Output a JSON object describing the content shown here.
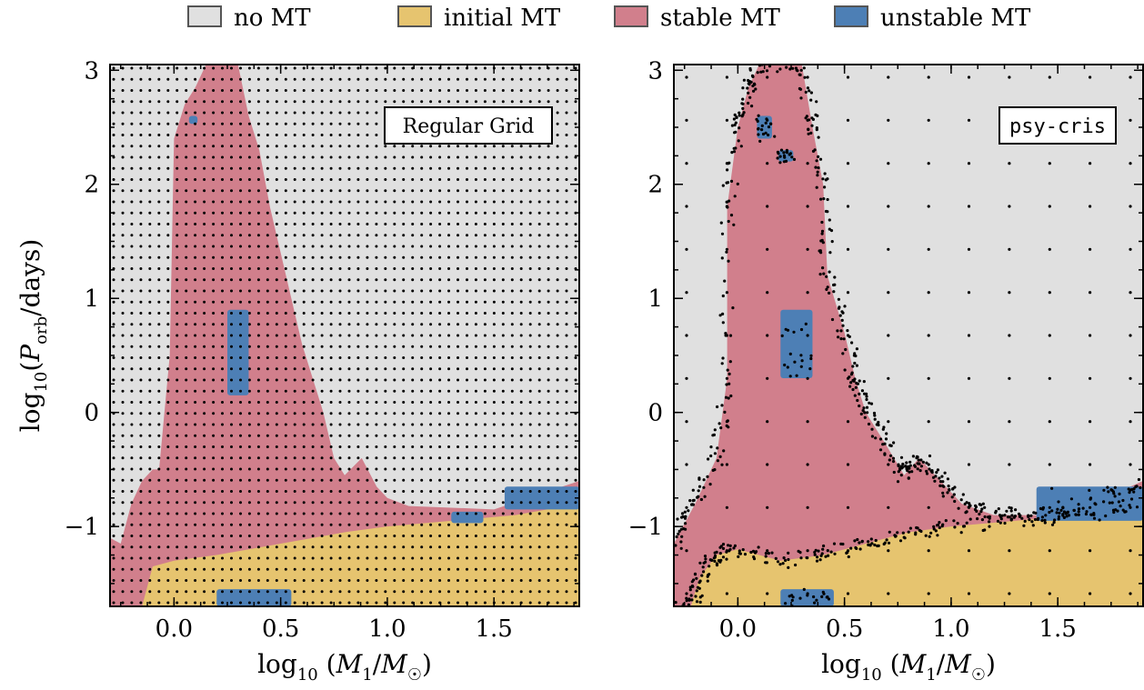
{
  "legend": [
    {
      "label": "no MT",
      "color": "#e0e0e0"
    },
    {
      "label": "initial MT",
      "color": "#e6c46f"
    },
    {
      "label": "stable MT",
      "color": "#d17f8c"
    },
    {
      "label": "unstable MT",
      "color": "#4d7fb5"
    }
  ],
  "chart_data": [
    {
      "type": "heatmap",
      "annotation": "Regular Grid",
      "xlabel": "log10(M1/M☉)",
      "ylabel": "log10(Porb/days)",
      "xlim": [
        -0.3,
        1.9
      ],
      "ylim": [
        -1.7,
        3.05
      ],
      "xticks": [
        0.0,
        0.5,
        1.0,
        1.5
      ],
      "xtick_labels": [
        "0.0",
        "0.5",
        "1.0",
        "1.5"
      ],
      "yticks": [
        -1,
        0,
        1,
        2,
        3
      ],
      "ytick_labels": [
        "−1",
        "0",
        "1",
        "2",
        "3"
      ],
      "sampling": "regular-grid",
      "regions": {
        "stable_MT_upper_boundary": [
          [
            -0.3,
            -1.1
          ],
          [
            -0.25,
            -1.15
          ],
          [
            -0.2,
            -0.8
          ],
          [
            -0.15,
            -0.6
          ],
          [
            -0.1,
            -0.5
          ],
          [
            -0.07,
            -0.5
          ],
          [
            -0.02,
            0.5
          ],
          [
            0.0,
            2.4
          ],
          [
            0.05,
            2.7
          ],
          [
            0.1,
            2.85
          ],
          [
            0.15,
            3.05
          ],
          [
            0.3,
            3.05
          ],
          [
            0.35,
            2.6
          ],
          [
            0.4,
            2.3
          ],
          [
            0.45,
            1.8
          ],
          [
            0.5,
            1.4
          ],
          [
            0.55,
            1.0
          ],
          [
            0.6,
            0.6
          ],
          [
            0.7,
            0.0
          ],
          [
            0.75,
            -0.4
          ],
          [
            0.8,
            -0.55
          ],
          [
            0.88,
            -0.4
          ],
          [
            0.95,
            -0.65
          ],
          [
            1.0,
            -0.75
          ],
          [
            1.1,
            -0.82
          ],
          [
            1.5,
            -0.85
          ],
          [
            1.9,
            -0.6
          ]
        ],
        "initial_MT_upper_boundary": [
          [
            -0.3,
            -1.7
          ],
          [
            -0.15,
            -1.7
          ],
          [
            -0.1,
            -1.35
          ],
          [
            0.0,
            -1.3
          ],
          [
            0.2,
            -1.25
          ],
          [
            0.5,
            -1.15
          ],
          [
            0.8,
            -1.05
          ],
          [
            1.0,
            -1.0
          ],
          [
            1.3,
            -0.95
          ],
          [
            1.6,
            -0.9
          ],
          [
            1.9,
            -0.8
          ]
        ],
        "unstable_MT_blobs": [
          {
            "x": [
              0.07,
              0.11
            ],
            "y": [
              2.53,
              2.6
            ]
          },
          {
            "x": [
              0.25,
              0.35
            ],
            "y": [
              0.15,
              0.9
            ]
          },
          {
            "x": [
              0.2,
              0.55
            ],
            "y": [
              -1.7,
              -1.55
            ]
          },
          {
            "x": [
              1.3,
              1.45
            ],
            "y": [
              -0.97,
              -0.87
            ]
          },
          {
            "x": [
              1.55,
              1.9
            ],
            "y": [
              -0.85,
              -0.65
            ]
          }
        ]
      }
    },
    {
      "type": "heatmap",
      "annotation": "psy-cris",
      "xlabel": "log10(M1/M☉)",
      "xlim": [
        -0.3,
        1.9
      ],
      "ylim": [
        -1.7,
        3.05
      ],
      "xticks": [
        0.0,
        0.5,
        1.0,
        1.5
      ],
      "xtick_labels": [
        "0.0",
        "0.5",
        "1.0",
        "1.5"
      ],
      "yticks": [
        -1,
        0,
        1,
        2,
        3
      ],
      "ytick_labels": [
        "−1",
        "0",
        "1",
        "2",
        "3"
      ],
      "sampling": "adaptive",
      "regions": {
        "stable_MT_upper_boundary": [
          [
            -0.3,
            -1.15
          ],
          [
            -0.2,
            -0.8
          ],
          [
            -0.1,
            -0.4
          ],
          [
            -0.05,
            0.3
          ],
          [
            -0.05,
            1.8
          ],
          [
            0.0,
            2.5
          ],
          [
            0.05,
            2.85
          ],
          [
            0.1,
            3.05
          ],
          [
            0.3,
            3.05
          ],
          [
            0.35,
            2.5
          ],
          [
            0.4,
            2.0
          ],
          [
            0.42,
            1.2
          ],
          [
            0.5,
            0.7
          ],
          [
            0.55,
            0.3
          ],
          [
            0.6,
            0.0
          ],
          [
            0.7,
            -0.3
          ],
          [
            0.78,
            -0.55
          ],
          [
            0.85,
            -0.4
          ],
          [
            0.95,
            -0.6
          ],
          [
            1.05,
            -0.8
          ],
          [
            1.2,
            -0.9
          ],
          [
            1.4,
            -0.9
          ],
          [
            1.6,
            -0.85
          ],
          [
            1.9,
            -0.6
          ]
        ],
        "initial_MT_upper_boundary": [
          [
            -0.3,
            -1.7
          ],
          [
            -0.22,
            -1.7
          ],
          [
            -0.18,
            -1.45
          ],
          [
            -0.1,
            -1.25
          ],
          [
            0.0,
            -1.2
          ],
          [
            0.2,
            -1.3
          ],
          [
            0.4,
            -1.25
          ],
          [
            0.6,
            -1.15
          ],
          [
            0.8,
            -1.05
          ],
          [
            1.0,
            -1.0
          ],
          [
            1.3,
            -0.95
          ],
          [
            1.6,
            -0.9
          ],
          [
            1.9,
            -0.8
          ]
        ],
        "unstable_MT_blobs": [
          {
            "x": [
              0.09,
              0.16
            ],
            "y": [
              2.4,
              2.6
            ]
          },
          {
            "x": [
              0.19,
              0.26
            ],
            "y": [
              2.2,
              2.3
            ]
          },
          {
            "x": [
              0.2,
              0.35
            ],
            "y": [
              0.3,
              0.9
            ]
          },
          {
            "x": [
              0.2,
              0.45
            ],
            "y": [
              -1.7,
              -1.55
            ]
          },
          {
            "x": [
              1.4,
              1.9
            ],
            "y": [
              -0.95,
              -0.65
            ]
          }
        ]
      }
    }
  ]
}
